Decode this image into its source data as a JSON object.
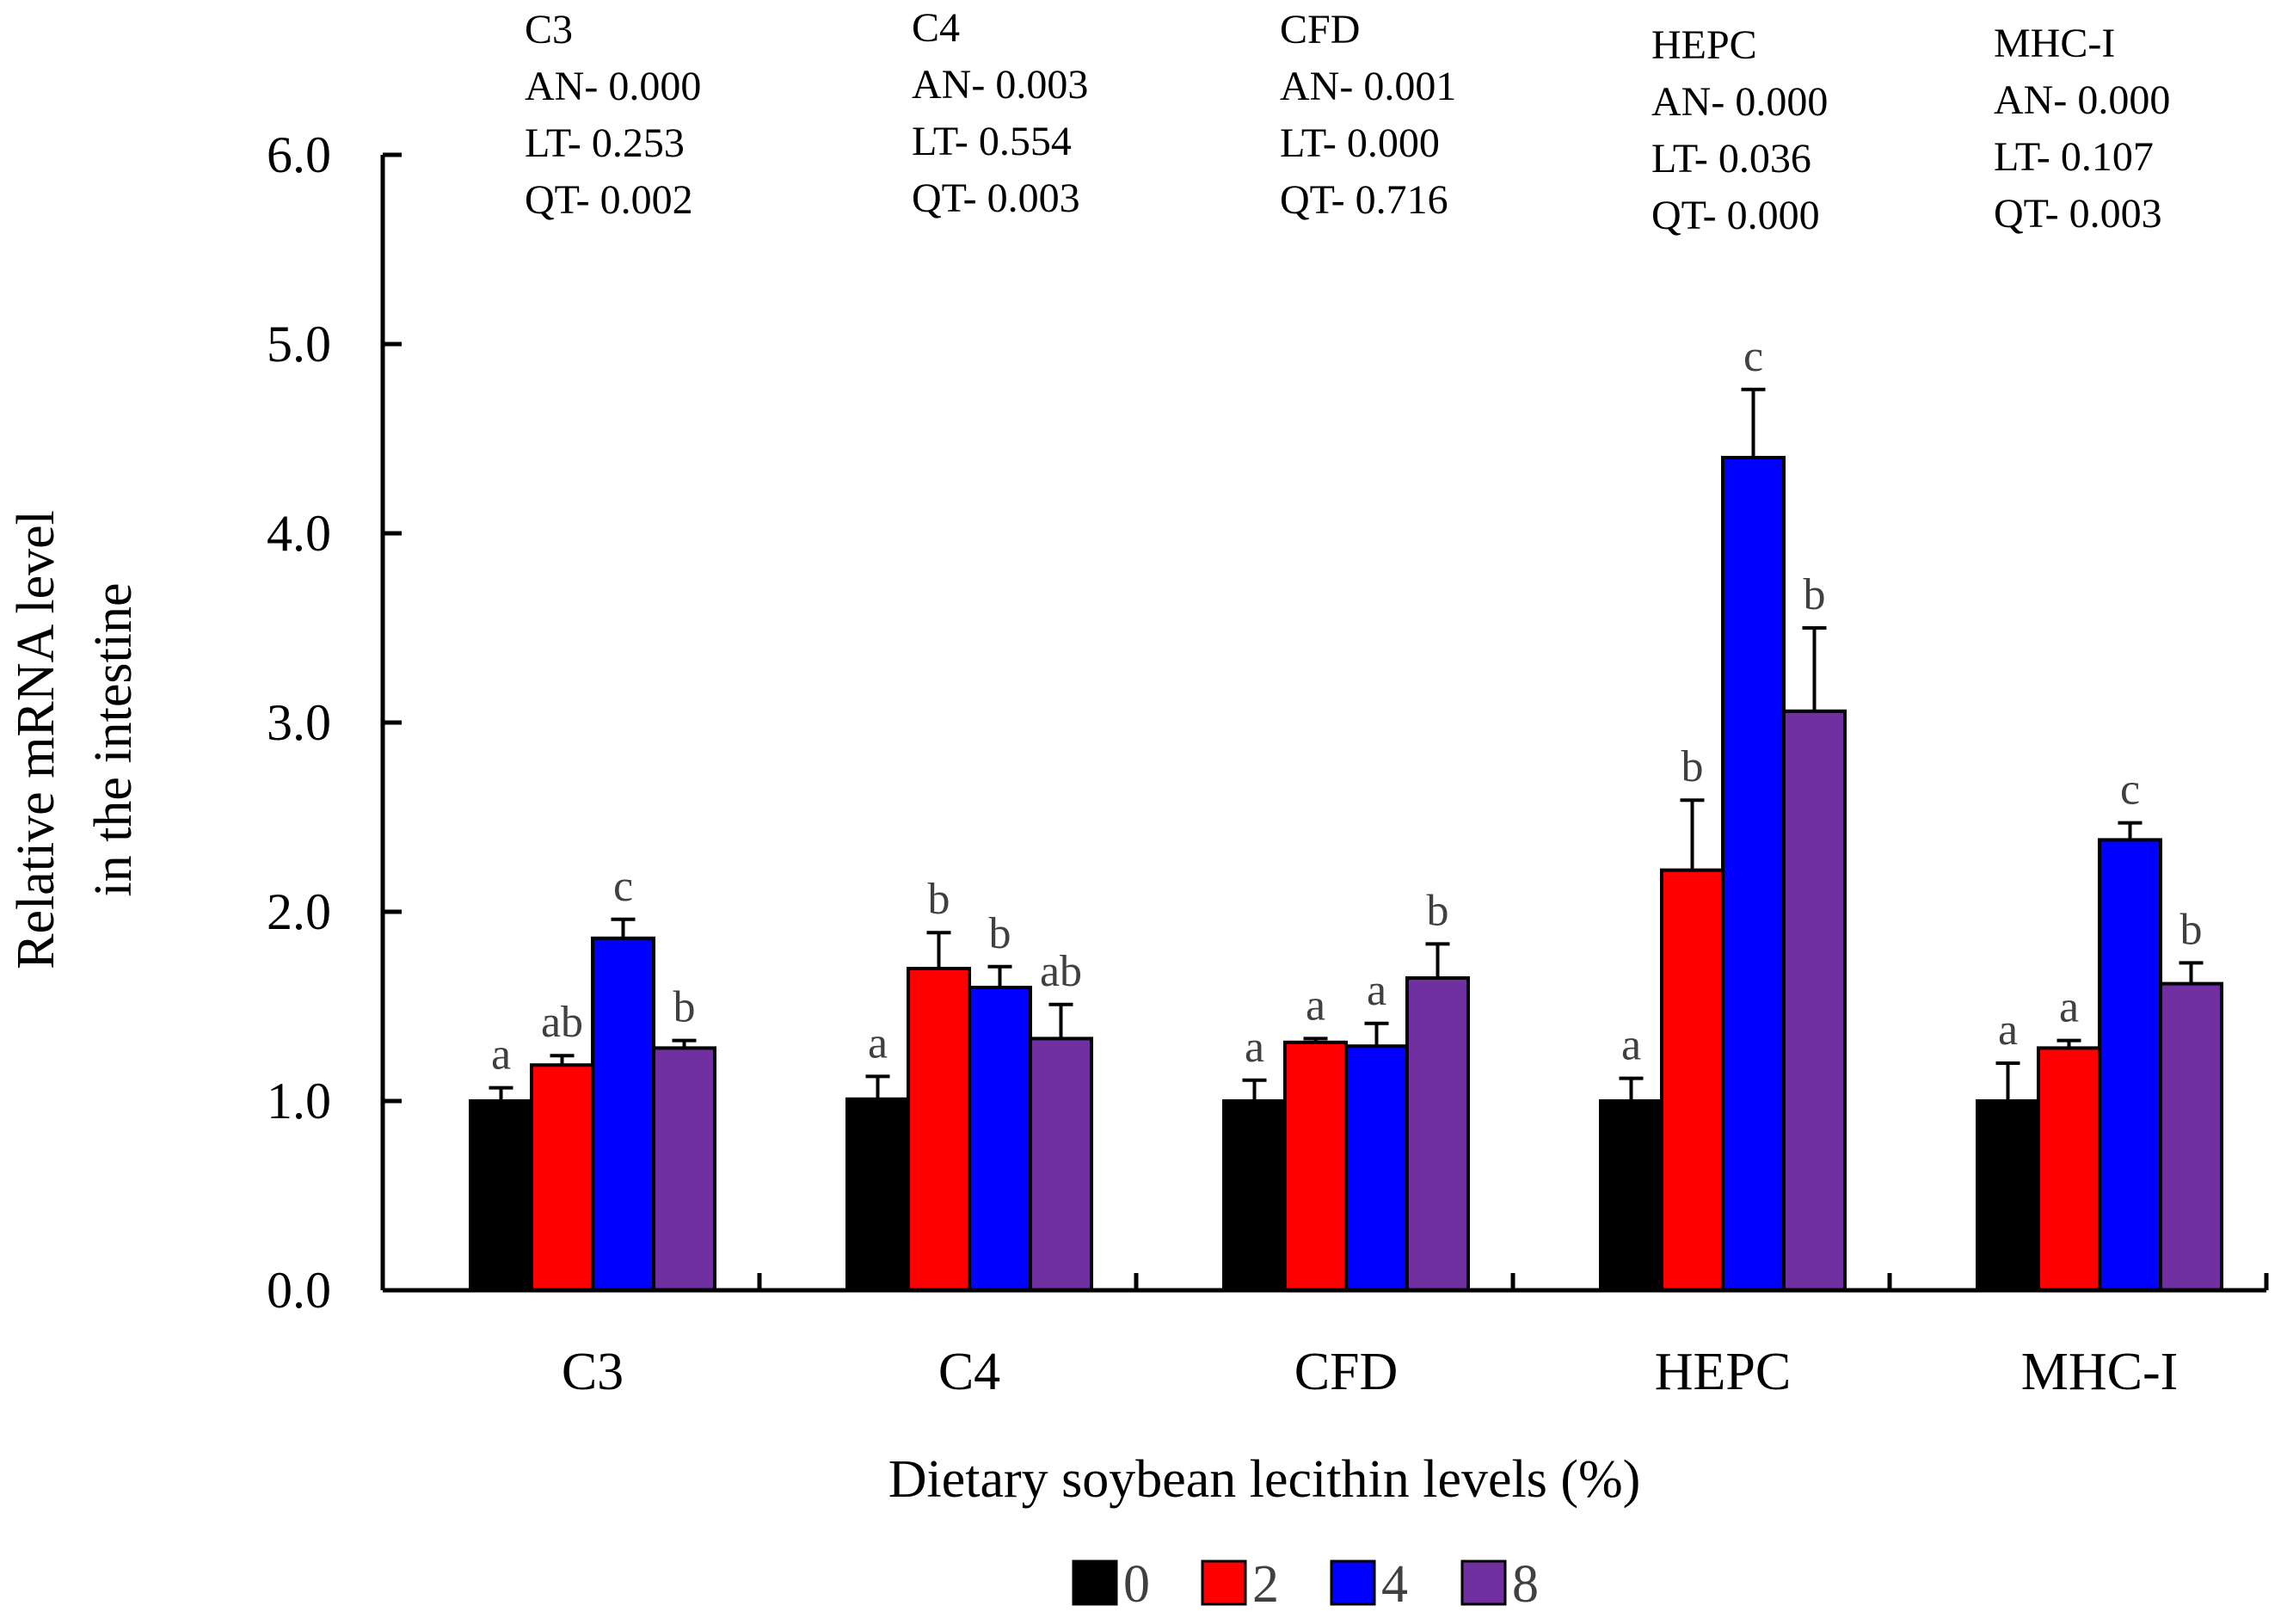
{
  "chart_data": {
    "type": "bar",
    "title": "",
    "xlabel": "Dietary soybean lecithin levels (%)",
    "ylabel_lines": [
      "Relative mRNA level",
      "in the intestine"
    ],
    "ylim": [
      0,
      6
    ],
    "yticks": [
      "0.0",
      "1.0",
      "2.0",
      "3.0",
      "4.0",
      "5.0",
      "6.0"
    ],
    "categories": [
      "C3",
      "C4",
      "CFD",
      "HEPC",
      "MHC-I"
    ],
    "series": [
      {
        "name": "0",
        "color": "#000000",
        "values": [
          1.0,
          1.01,
          1.0,
          1.0,
          1.0
        ],
        "errors": [
          0.07,
          0.12,
          0.11,
          0.12,
          0.2
        ],
        "letters": [
          "a",
          "a",
          "a",
          "a",
          "a"
        ]
      },
      {
        "name": "2",
        "color": "#ff0000",
        "values": [
          1.19,
          1.7,
          1.31,
          2.22,
          1.28
        ],
        "errors": [
          0.05,
          0.19,
          0.02,
          0.37,
          0.04
        ],
        "letters": [
          "ab",
          "b",
          "a",
          "b",
          "a"
        ]
      },
      {
        "name": "4",
        "color": "#0000ff",
        "values": [
          1.86,
          1.6,
          1.29,
          4.4,
          2.38
        ],
        "errors": [
          0.1,
          0.11,
          0.12,
          0.36,
          0.09
        ],
        "letters": [
          "c",
          "b",
          "a",
          "c",
          "c"
        ]
      },
      {
        "name": "8",
        "color": "#7030a0",
        "values": [
          1.28,
          1.33,
          1.65,
          3.06,
          1.62
        ],
        "errors": [
          0.04,
          0.18,
          0.18,
          0.44,
          0.11
        ],
        "letters": [
          "b",
          "ab",
          "b",
          "b",
          "b"
        ]
      }
    ],
    "annotations": [
      {
        "gene": "C3",
        "lines": [
          "AN- 0.000",
          "LT- 0.253",
          "QT- 0.002"
        ]
      },
      {
        "gene": "C4",
        "lines": [
          "AN- 0.003",
          "LT- 0.554",
          "QT- 0.003"
        ]
      },
      {
        "gene": "CFD",
        "lines": [
          "AN- 0.001",
          "LT- 0.000",
          "QT- 0.716"
        ]
      },
      {
        "gene": "HEPC",
        "lines": [
          "AN- 0.000",
          "LT- 0.036",
          "QT- 0.000"
        ]
      },
      {
        "gene": "MHC-I",
        "lines": [
          "AN- 0.000",
          "LT- 0.107",
          "QT- 0.003"
        ]
      }
    ],
    "legend": {
      "position": "bottom",
      "entries": [
        "0",
        "2",
        "4",
        "8"
      ]
    }
  }
}
